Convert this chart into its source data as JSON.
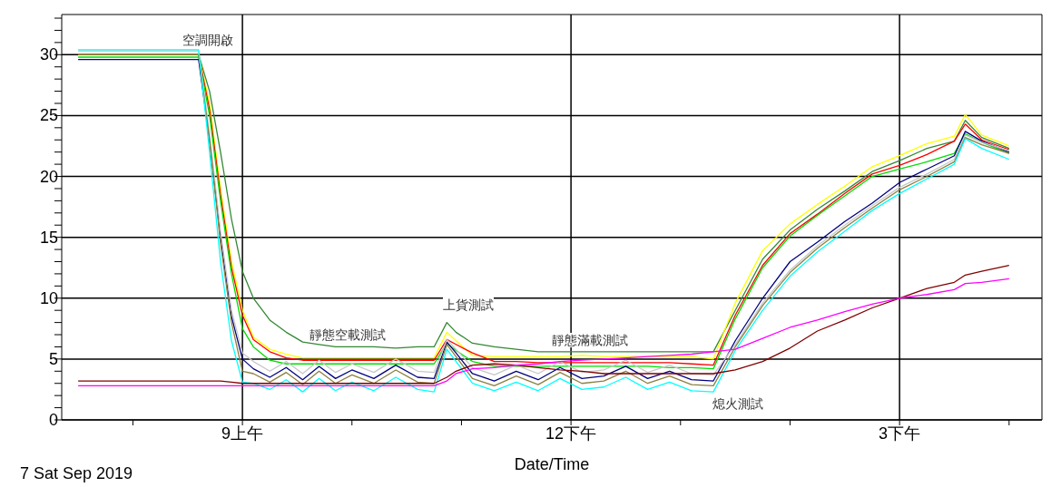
{
  "chart_data": {
    "type": "line",
    "xlabel": "Date/Time",
    "annotations": [
      "7 Sat Sep 2019",
      "空調開啟",
      "靜態空載測試",
      "上貨測試",
      "靜態滿載測試",
      "熄火測試"
    ],
    "x": [
      "2019-09-07T07:30",
      "2019-09-07T08:36",
      "2019-09-07T08:42",
      "2019-09-07T08:48",
      "2019-09-07T08:54",
      "2019-09-07T09:00",
      "2019-09-07T09:06",
      "2019-09-07T09:15",
      "2019-09-07T09:24",
      "2019-09-07T09:33",
      "2019-09-07T09:42",
      "2019-09-07T09:51",
      "2019-09-07T10:00",
      "2019-09-07T10:12",
      "2019-09-07T10:24",
      "2019-09-07T10:36",
      "2019-09-07T10:45",
      "2019-09-07T10:52",
      "2019-09-07T10:57",
      "2019-09-07T11:06",
      "2019-09-07T11:18",
      "2019-09-07T11:30",
      "2019-09-07T11:42",
      "2019-09-07T11:54",
      "2019-09-07T12:06",
      "2019-09-07T12:18",
      "2019-09-07T12:30",
      "2019-09-07T12:42",
      "2019-09-07T12:54",
      "2019-09-07T13:06",
      "2019-09-07T13:18",
      "2019-09-07T13:30",
      "2019-09-07T13:45",
      "2019-09-07T14:00",
      "2019-09-07T14:15",
      "2019-09-07T14:30",
      "2019-09-07T14:45",
      "2019-09-07T15:00",
      "2019-09-07T15:15",
      "2019-09-07T15:30",
      "2019-09-07T15:36",
      "2019-09-07T15:45",
      "2019-09-07T16:00"
    ],
    "series": [
      {
        "color": "#338833",
        "values": [
          30,
          30,
          27,
          22,
          16.5,
          12.2,
          10,
          8.2,
          7.2,
          6.4,
          6.2,
          6.0,
          6.0,
          6.0,
          5.9,
          6.0,
          6.0,
          8.0,
          7.2,
          6.3,
          6.0,
          5.8,
          5.6,
          5.6,
          5.6,
          5.6,
          5.6,
          5.6,
          5.6,
          5.6,
          5.6,
          9.0,
          13.2,
          15.6,
          17.3,
          18.8,
          20.4,
          21.3,
          22.3,
          22.9,
          24.6,
          23.2,
          22.3
        ]
      },
      {
        "color": "#ffff00",
        "values": [
          30,
          30,
          26,
          19,
          13,
          9,
          6.8,
          5.8,
          5.4,
          5.1,
          5.1,
          5.1,
          5.1,
          5.1,
          5.1,
          5.1,
          5.1,
          7.2,
          6.5,
          5.3,
          5.2,
          5.2,
          5.2,
          5.2,
          5.3,
          5.2,
          5.2,
          5.2,
          5.2,
          5.2,
          5.0,
          9.6,
          13.9,
          16.1,
          17.7,
          19.2,
          20.8,
          21.7,
          22.7,
          23.3,
          25.1,
          23.4,
          22.5
        ]
      },
      {
        "color": "#ff0000",
        "values": [
          30,
          30,
          25.5,
          18.5,
          12.5,
          8.6,
          6.6,
          5.6,
          5.1,
          4.9,
          4.9,
          4.9,
          4.9,
          4.9,
          4.9,
          4.9,
          4.9,
          6.6,
          6.2,
          5.5,
          4.8,
          4.8,
          4.7,
          4.7,
          4.7,
          4.7,
          4.7,
          4.7,
          4.7,
          4.6,
          4.5,
          8.6,
          12.7,
          15.3,
          16.9,
          18.6,
          20.2,
          20.9,
          21.8,
          22.9,
          24.3,
          23.0,
          22.2
        ]
      },
      {
        "color": "#00dd00",
        "values": [
          29.8,
          29.8,
          25,
          18,
          12,
          7.5,
          6.0,
          4.9,
          4.6,
          4.6,
          4.6,
          4.6,
          4.6,
          4.6,
          4.6,
          4.6,
          4.6,
          6.3,
          5.7,
          4.8,
          4.4,
          4.4,
          4.4,
          4.4,
          4.4,
          4.4,
          4.4,
          4.4,
          4.3,
          4.3,
          4.2,
          8.3,
          12.5,
          15.1,
          16.8,
          18.4,
          20.0,
          20.6,
          21.2,
          21.9,
          23.5,
          22.8,
          21.9
        ]
      },
      {
        "color": "#000080",
        "values": [
          29.6,
          29.6,
          23,
          15,
          8.5,
          5.0,
          4.2,
          3.5,
          4.3,
          3.3,
          4.4,
          3.4,
          4.1,
          3.4,
          4.5,
          3.5,
          3.4,
          6.4,
          5.5,
          3.8,
          3.2,
          4.0,
          3.3,
          4.3,
          3.4,
          3.6,
          4.4,
          3.4,
          4.0,
          3.3,
          3.2,
          6.5,
          10.0,
          13.0,
          14.6,
          16.3,
          17.8,
          19.5,
          20.6,
          21.7,
          23.7,
          22.9,
          22.0
        ]
      },
      {
        "color": "#c8c8c8",
        "values": [
          30.3,
          30.3,
          23.5,
          15.5,
          9,
          5.5,
          4.8,
          4.0,
          4.8,
          3.8,
          4.9,
          3.9,
          4.6,
          3.9,
          5.0,
          4.0,
          3.9,
          6.6,
          5.8,
          4.3,
          3.7,
          4.5,
          3.8,
          4.8,
          3.9,
          4.1,
          4.9,
          3.9,
          4.5,
          3.8,
          3.7,
          6.2,
          9.6,
          12.3,
          14.3,
          16.0,
          17.6,
          19.1,
          20.2,
          21.4,
          23.4,
          22.8,
          22.1
        ]
      },
      {
        "color": "#8b8040",
        "values": [
          30,
          30,
          23,
          14.5,
          8,
          4.0,
          3.8,
          3.1,
          3.9,
          2.9,
          4.0,
          3.0,
          3.7,
          3.0,
          4.1,
          3.1,
          3.0,
          6.2,
          5.2,
          3.4,
          2.8,
          3.6,
          2.9,
          3.9,
          3.0,
          3.2,
          4.0,
          3.0,
          3.6,
          2.9,
          2.8,
          6.0,
          9.4,
          12.1,
          14.1,
          15.8,
          17.4,
          18.9,
          20.0,
          21.2,
          23.2,
          22.6,
          21.9
        ]
      },
      {
        "color": "#00ffff",
        "values": [
          30.4,
          30.4,
          22,
          13,
          6.5,
          3.1,
          3.0,
          2.5,
          3.3,
          2.3,
          3.4,
          2.4,
          3.1,
          2.4,
          3.5,
          2.5,
          2.3,
          5.8,
          4.8,
          3.0,
          2.4,
          3.1,
          2.4,
          3.4,
          2.5,
          2.7,
          3.5,
          2.5,
          3.1,
          2.4,
          2.3,
          5.7,
          9.0,
          11.8,
          13.8,
          15.5,
          17.2,
          18.6,
          19.8,
          21.0,
          23.1,
          22.3,
          21.4
        ]
      },
      {
        "color": "#800000",
        "values": [
          3.2,
          3.2,
          3.2,
          3.2,
          3.1,
          3.0,
          3.0,
          3.0,
          3.0,
          3.0,
          3.0,
          3.0,
          3.0,
          3.0,
          3.0,
          3.0,
          3.0,
          3.5,
          4.0,
          4.5,
          4.6,
          4.5,
          4.3,
          4.1,
          4.0,
          3.8,
          3.8,
          3.8,
          3.8,
          3.8,
          3.8,
          4.1,
          4.8,
          5.9,
          7.3,
          8.2,
          9.2,
          10.0,
          10.8,
          11.3,
          11.9,
          12.2,
          12.7
        ]
      },
      {
        "color": "#ff00ff",
        "values": [
          2.8,
          2.8,
          2.8,
          2.8,
          2.8,
          2.8,
          2.8,
          2.8,
          2.8,
          2.8,
          2.8,
          2.8,
          2.8,
          2.8,
          2.8,
          2.8,
          2.8,
          3.2,
          3.8,
          4.2,
          4.3,
          4.5,
          4.6,
          4.8,
          4.9,
          5.0,
          5.1,
          5.2,
          5.3,
          5.4,
          5.6,
          5.8,
          6.7,
          7.6,
          8.2,
          8.9,
          9.5,
          10.0,
          10.3,
          10.7,
          11.2,
          11.3,
          11.6
        ]
      }
    ],
    "xlim": [
      "2019-09-07T07:21",
      "2019-09-07T16:18"
    ],
    "xticks": [
      {
        "value": "2019-09-07T08:00",
        "label": null
      },
      {
        "value": "2019-09-07T09:00",
        "label": "9上午"
      },
      {
        "value": "2019-09-07T10:00",
        "label": null
      },
      {
        "value": "2019-09-07T11:00",
        "label": null
      },
      {
        "value": "2019-09-07T12:00",
        "label": "12下午"
      },
      {
        "value": "2019-09-07T13:00",
        "label": null
      },
      {
        "value": "2019-09-07T14:00",
        "label": null
      },
      {
        "value": "2019-09-07T15:00",
        "label": "3下午"
      },
      {
        "value": "2019-09-07T16:00",
        "label": null
      }
    ],
    "ylim": [
      0,
      33.3
    ],
    "yticks": [
      0,
      {
        "value": 1,
        "label": null
      },
      {
        "value": 2,
        "label": null
      },
      {
        "value": 3,
        "label": null
      },
      {
        "value": 4,
        "label": null
      },
      5,
      {
        "value": 6,
        "label": null
      },
      {
        "value": 7,
        "label": null
      },
      {
        "value": 8,
        "label": null
      },
      {
        "value": 9,
        "label": null
      },
      10,
      {
        "value": 11,
        "label": null
      },
      {
        "value": 12,
        "label": null
      },
      {
        "value": 13,
        "label": null
      },
      {
        "value": 14,
        "label": null
      },
      15,
      {
        "value": 16,
        "label": null
      },
      {
        "value": 17,
        "label": null
      },
      {
        "value": 18,
        "label": null
      },
      {
        "value": 19,
        "label": null
      },
      20,
      {
        "value": 21,
        "label": null
      },
      {
        "value": 22,
        "label": null
      },
      {
        "value": 23,
        "label": null
      },
      {
        "value": 24,
        "label": null
      },
      25,
      {
        "value": 26,
        "label": null
      },
      {
        "value": 27,
        "label": null
      },
      {
        "value": 28,
        "label": null
      },
      {
        "value": 29,
        "label": null
      },
      30,
      {
        "value": 31,
        "label": null
      },
      {
        "value": 32,
        "label": null
      },
      {
        "value": 33,
        "label": null
      }
    ],
    "grid": true,
    "legend": false,
    "marker": "none",
    "line_style": "solid"
  }
}
